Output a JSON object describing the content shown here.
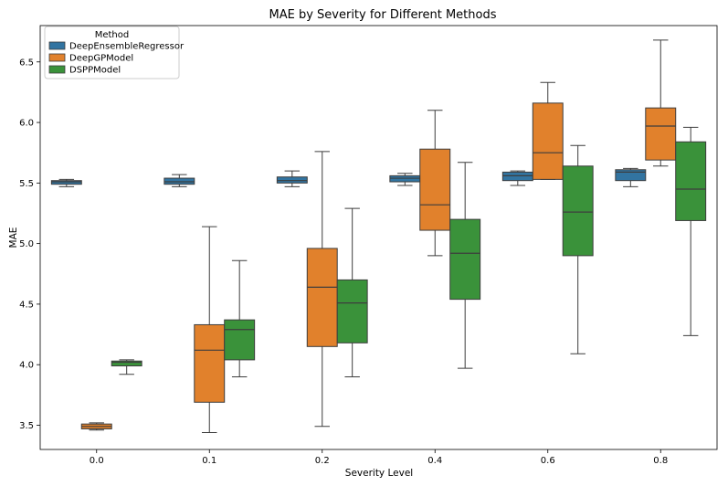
{
  "chart_data": {
    "type": "box",
    "title": "MAE by Severity for Different Methods",
    "xlabel": "Severity Level",
    "ylabel": "MAE",
    "categories": [
      "0.0",
      "0.1",
      "0.2",
      "0.4",
      "0.6",
      "0.8"
    ],
    "ylim": [
      3.3,
      6.8
    ],
    "yticks": [
      "3.5",
      "4.0",
      "4.5",
      "5.0",
      "5.5",
      "6.0",
      "6.5"
    ],
    "legend": {
      "title": "Method",
      "placement": "top-left"
    },
    "series": [
      {
        "name": "DeepEnsembleRegressor",
        "color": "#3274a1",
        "boxes": [
          {
            "min": 5.47,
            "q1": 5.49,
            "median": 5.51,
            "q3": 5.52,
            "max": 5.53
          },
          {
            "min": 5.47,
            "q1": 5.49,
            "median": 5.51,
            "q3": 5.54,
            "max": 5.57
          },
          {
            "min": 5.47,
            "q1": 5.5,
            "median": 5.52,
            "q3": 5.55,
            "max": 5.6
          },
          {
            "min": 5.48,
            "q1": 5.51,
            "median": 5.54,
            "q3": 5.56,
            "max": 5.58
          },
          {
            "min": 5.48,
            "q1": 5.52,
            "median": 5.56,
            "q3": 5.59,
            "max": 5.6
          },
          {
            "min": 5.47,
            "q1": 5.52,
            "median": 5.59,
            "q3": 5.61,
            "max": 5.62
          }
        ]
      },
      {
        "name": "DeepGPModel",
        "color": "#e1812c",
        "boxes": [
          {
            "min": 3.46,
            "q1": 3.47,
            "median": 3.49,
            "q3": 3.51,
            "max": 3.52
          },
          {
            "min": 3.44,
            "q1": 3.69,
            "median": 4.12,
            "q3": 4.33,
            "max": 5.14
          },
          {
            "min": 3.49,
            "q1": 4.15,
            "median": 4.64,
            "q3": 4.96,
            "max": 5.76
          },
          {
            "min": 4.9,
            "q1": 5.11,
            "median": 5.32,
            "q3": 5.78,
            "max": 6.1
          },
          {
            "min": 5.53,
            "q1": 5.53,
            "median": 5.75,
            "q3": 6.16,
            "max": 6.33
          },
          {
            "min": 5.64,
            "q1": 5.69,
            "median": 5.97,
            "q3": 6.12,
            "max": 6.68
          }
        ]
      },
      {
        "name": "DSPPModel",
        "color": "#3a923a",
        "boxes": [
          {
            "min": 3.92,
            "q1": 3.99,
            "median": 4.02,
            "q3": 4.03,
            "max": 4.04
          },
          {
            "min": 3.9,
            "q1": 4.04,
            "median": 4.29,
            "q3": 4.37,
            "max": 4.86
          },
          {
            "min": 3.9,
            "q1": 4.18,
            "median": 4.51,
            "q3": 4.7,
            "max": 5.29
          },
          {
            "min": 3.97,
            "q1": 4.54,
            "median": 4.92,
            "q3": 5.2,
            "max": 5.67
          },
          {
            "min": 4.09,
            "q1": 4.9,
            "median": 5.26,
            "q3": 5.64,
            "max": 5.81
          },
          {
            "min": 4.24,
            "q1": 5.19,
            "median": 5.45,
            "q3": 5.84,
            "max": 5.96
          }
        ]
      }
    ]
  }
}
